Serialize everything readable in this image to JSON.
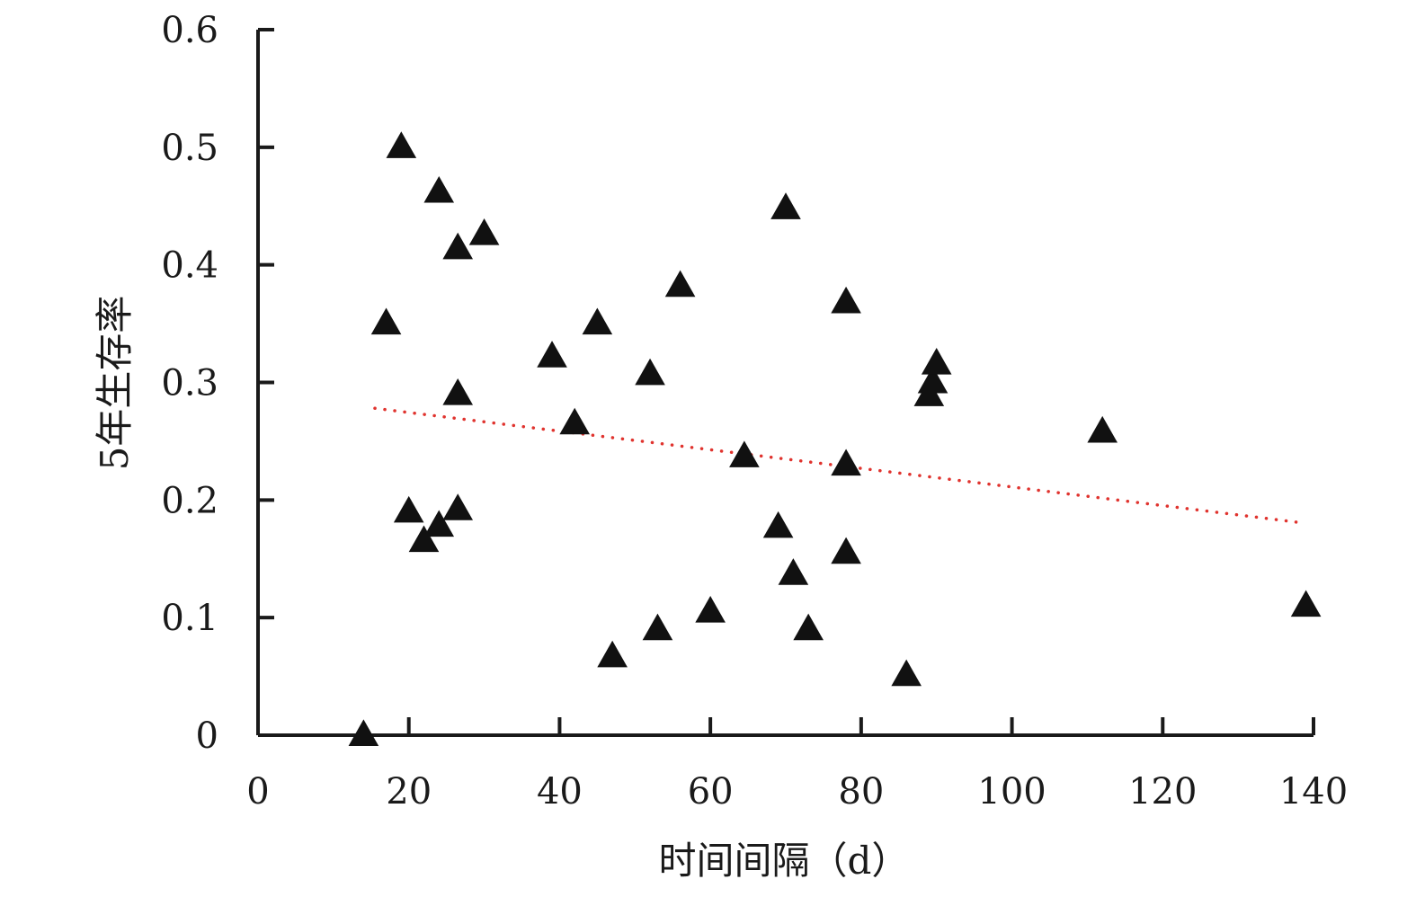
{
  "chart_data": {
    "type": "scatter",
    "xlabel": "时间间隔（d）",
    "ylabel": "5年生存率",
    "xlim": [
      0,
      140
    ],
    "ylim": [
      0,
      0.6
    ],
    "x_ticks": [
      "0",
      "20",
      "40",
      "60",
      "80",
      "100",
      "120",
      "140"
    ],
    "y_ticks": [
      "0",
      "0.1",
      "0.2",
      "0.3",
      "0.4",
      "0.5",
      "0.6"
    ],
    "grid": false,
    "marker": "triangle",
    "marker_color": "#111111",
    "series": [
      {
        "points": [
          {
            "x": 14,
            "y": 0.0
          },
          {
            "x": 17,
            "y": 0.35
          },
          {
            "x": 19,
            "y": 0.5
          },
          {
            "x": 20,
            "y": 0.19
          },
          {
            "x": 22,
            "y": 0.165
          },
          {
            "x": 24,
            "y": 0.462
          },
          {
            "x": 24,
            "y": 0.178
          },
          {
            "x": 26.5,
            "y": 0.414
          },
          {
            "x": 26.5,
            "y": 0.29
          },
          {
            "x": 26.5,
            "y": 0.192
          },
          {
            "x": 30,
            "y": 0.426
          },
          {
            "x": 39,
            "y": 0.322
          },
          {
            "x": 42,
            "y": 0.265
          },
          {
            "x": 45,
            "y": 0.35
          },
          {
            "x": 47,
            "y": 0.067
          },
          {
            "x": 52,
            "y": 0.307
          },
          {
            "x": 53,
            "y": 0.09
          },
          {
            "x": 56,
            "y": 0.382
          },
          {
            "x": 60,
            "y": 0.105
          },
          {
            "x": 64.5,
            "y": 0.237
          },
          {
            "x": 69,
            "y": 0.177
          },
          {
            "x": 70,
            "y": 0.448
          },
          {
            "x": 71,
            "y": 0.137
          },
          {
            "x": 73,
            "y": 0.09
          },
          {
            "x": 78,
            "y": 0.368
          },
          {
            "x": 78,
            "y": 0.23
          },
          {
            "x": 78,
            "y": 0.155
          },
          {
            "x": 86,
            "y": 0.051
          },
          {
            "x": 89,
            "y": 0.289
          },
          {
            "x": 89.5,
            "y": 0.3
          },
          {
            "x": 90,
            "y": 0.316
          },
          {
            "x": 112,
            "y": 0.258
          },
          {
            "x": 139,
            "y": 0.11
          }
        ]
      }
    ],
    "trendline": {
      "style": "dotted",
      "color": "#e0332e",
      "points": [
        {
          "x": 15.5,
          "y": 0.278
        },
        {
          "x": 138,
          "y": 0.181
        }
      ]
    }
  }
}
